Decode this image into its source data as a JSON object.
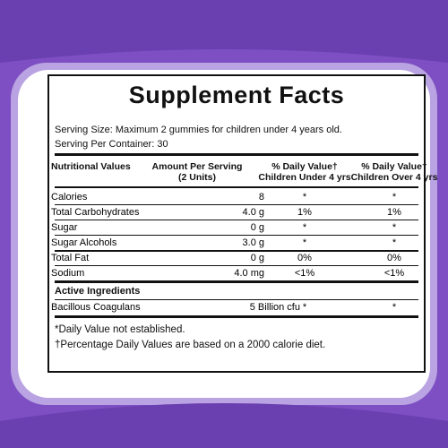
{
  "header": {
    "title": "Supplement Facts"
  },
  "serving": [
    "Serving Size: Maximum 2 gummies for children under 4 years old.",
    "Serving Per Container: 30"
  ],
  "table": {
    "columns": [
      [
        "Nutritional Values"
      ],
      [
        "Amount Per Serving",
        "(2 Units)"
      ],
      [
        "% Daily Value†",
        "Children Under 4 yrs"
      ],
      [
        "% Daily Value†",
        "Children Over 4 yrs"
      ]
    ],
    "rows": [
      [
        "Calories",
        "8",
        "*",
        "*"
      ],
      [
        "Total Carbohydrates",
        "4.0 g",
        "1%",
        "1%"
      ],
      [
        "Sugar",
        "0 g",
        "*",
        "*"
      ],
      [
        "Sugar Alcohols",
        "3.0 g",
        "*",
        "*"
      ],
      [
        "Total Fat",
        "0 g",
        "0%",
        "0%"
      ],
      [
        "Sodium",
        "4.0 mg",
        "<1%",
        "<1%"
      ]
    ],
    "section": "Active Ingredients",
    "active_rows": [
      [
        "Bacillous Coagulans",
        "5 Billion cfu",
        "*",
        "*"
      ]
    ]
  },
  "footnotes": [
    "*Daily Value not established.",
    "†Percentage Daily Values are based on a 2000 calorie diet."
  ]
}
